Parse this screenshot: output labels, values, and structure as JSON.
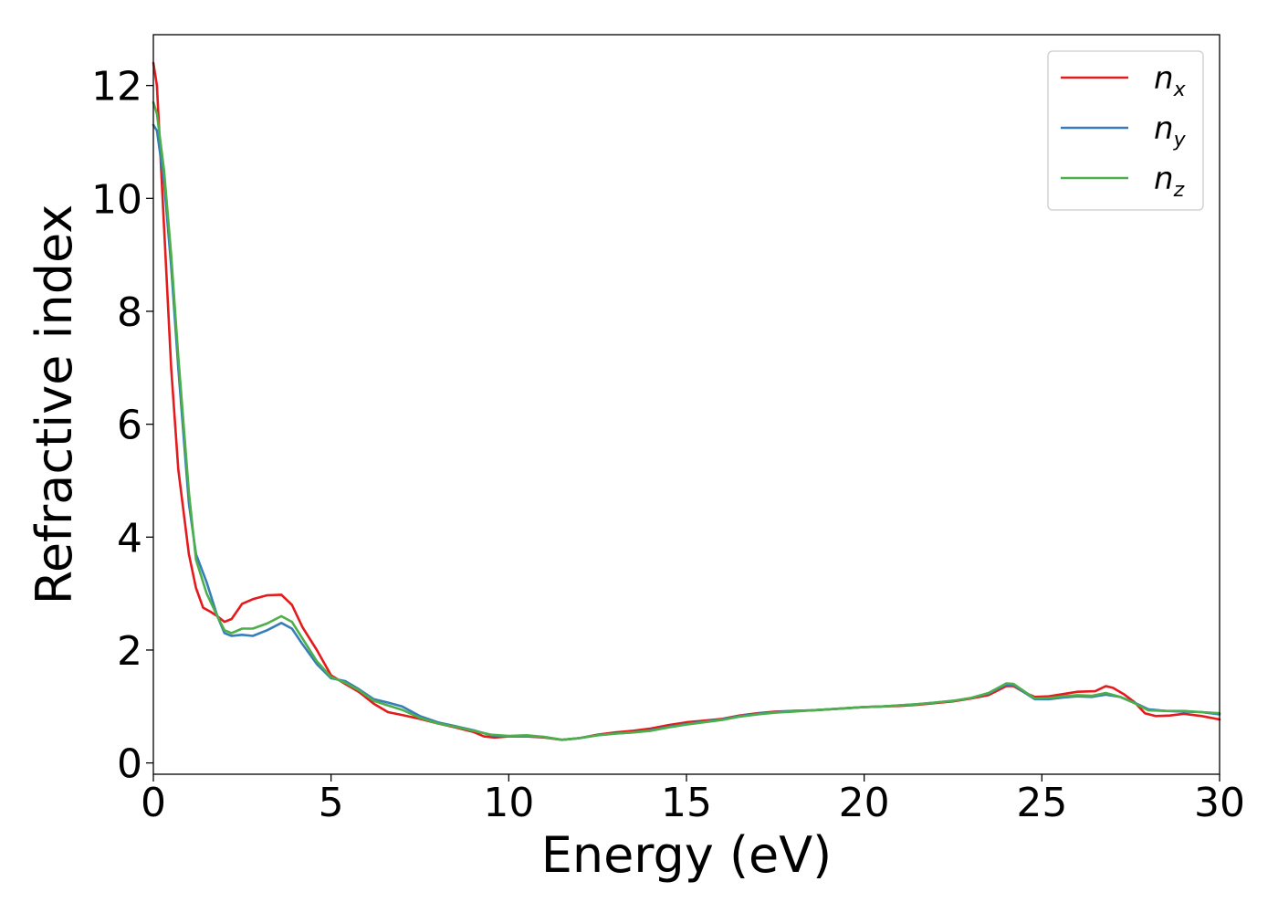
{
  "chart_data": {
    "type": "line",
    "title": "",
    "xlabel": "Energy (eV)",
    "ylabel": "Refractive index",
    "xlim": [
      0,
      30
    ],
    "ylim": [
      -0.2,
      12.9
    ],
    "xticks": [
      0,
      5,
      10,
      15,
      20,
      25,
      30
    ],
    "xtick_labels": [
      "0",
      "5",
      "10",
      "15",
      "20",
      "25",
      "30"
    ],
    "yticks": [
      0,
      2,
      4,
      6,
      8,
      10,
      12
    ],
    "ytick_labels": [
      "0",
      "2",
      "4",
      "6",
      "8",
      "10",
      "12"
    ],
    "grid": false,
    "legend_position": "top-right",
    "series": [
      {
        "name": "n_x",
        "label_main": "n",
        "label_sub": "x",
        "color": "#e41a1c",
        "points": [
          [
            0,
            12.4
          ],
          [
            0.1,
            12.0
          ],
          [
            0.3,
            9.5
          ],
          [
            0.5,
            7.0
          ],
          [
            0.7,
            5.2
          ],
          [
            1.0,
            3.7
          ],
          [
            1.2,
            3.1
          ],
          [
            1.4,
            2.75
          ],
          [
            1.6,
            2.68
          ],
          [
            1.8,
            2.6
          ],
          [
            2.0,
            2.5
          ],
          [
            2.2,
            2.55
          ],
          [
            2.5,
            2.82
          ],
          [
            2.8,
            2.9
          ],
          [
            3.2,
            2.97
          ],
          [
            3.6,
            2.98
          ],
          [
            3.9,
            2.8
          ],
          [
            4.2,
            2.4
          ],
          [
            4.6,
            2.0
          ],
          [
            5.0,
            1.55
          ],
          [
            5.4,
            1.4
          ],
          [
            5.8,
            1.25
          ],
          [
            6.2,
            1.05
          ],
          [
            6.6,
            0.9
          ],
          [
            7.0,
            0.85
          ],
          [
            7.5,
            0.78
          ],
          [
            8.0,
            0.7
          ],
          [
            8.5,
            0.63
          ],
          [
            9.0,
            0.55
          ],
          [
            9.3,
            0.47
          ],
          [
            9.6,
            0.45
          ],
          [
            10.0,
            0.47
          ],
          [
            10.5,
            0.47
          ],
          [
            11.0,
            0.45
          ],
          [
            11.5,
            0.41
          ],
          [
            12.0,
            0.44
          ],
          [
            12.5,
            0.5
          ],
          [
            13.0,
            0.54
          ],
          [
            13.5,
            0.57
          ],
          [
            14.0,
            0.61
          ],
          [
            14.5,
            0.67
          ],
          [
            15.0,
            0.72
          ],
          [
            15.5,
            0.75
          ],
          [
            16.0,
            0.78
          ],
          [
            16.5,
            0.84
          ],
          [
            17.0,
            0.88
          ],
          [
            17.5,
            0.91
          ],
          [
            18.0,
            0.92
          ],
          [
            18.5,
            0.93
          ],
          [
            19.0,
            0.95
          ],
          [
            19.5,
            0.97
          ],
          [
            20.0,
            0.99
          ],
          [
            20.5,
            1.0
          ],
          [
            21.0,
            1.01
          ],
          [
            21.5,
            1.03
          ],
          [
            22.0,
            1.06
          ],
          [
            22.5,
            1.09
          ],
          [
            23.0,
            1.14
          ],
          [
            23.5,
            1.2
          ],
          [
            24.0,
            1.36
          ],
          [
            24.2,
            1.36
          ],
          [
            24.5,
            1.25
          ],
          [
            24.8,
            1.17
          ],
          [
            25.2,
            1.18
          ],
          [
            25.6,
            1.22
          ],
          [
            26.0,
            1.26
          ],
          [
            26.5,
            1.27
          ],
          [
            26.8,
            1.36
          ],
          [
            27.0,
            1.33
          ],
          [
            27.3,
            1.22
          ],
          [
            27.6,
            1.08
          ],
          [
            27.9,
            0.88
          ],
          [
            28.2,
            0.83
          ],
          [
            28.6,
            0.84
          ],
          [
            29.0,
            0.87
          ],
          [
            29.5,
            0.83
          ],
          [
            30.0,
            0.77
          ]
        ]
      },
      {
        "name": "n_y",
        "label_main": "n",
        "label_sub": "y",
        "color": "#377eb8",
        "points": [
          [
            0,
            11.3
          ],
          [
            0.1,
            11.2
          ],
          [
            0.3,
            10.3
          ],
          [
            0.5,
            8.8
          ],
          [
            0.7,
            7.0
          ],
          [
            1.0,
            4.6
          ],
          [
            1.2,
            3.7
          ],
          [
            1.5,
            3.2
          ],
          [
            1.8,
            2.6
          ],
          [
            2.0,
            2.3
          ],
          [
            2.2,
            2.25
          ],
          [
            2.5,
            2.27
          ],
          [
            2.8,
            2.25
          ],
          [
            3.2,
            2.35
          ],
          [
            3.6,
            2.48
          ],
          [
            3.9,
            2.38
          ],
          [
            4.2,
            2.1
          ],
          [
            4.6,
            1.75
          ],
          [
            5.0,
            1.5
          ],
          [
            5.4,
            1.45
          ],
          [
            5.8,
            1.3
          ],
          [
            6.2,
            1.13
          ],
          [
            6.6,
            1.07
          ],
          [
            7.0,
            1.0
          ],
          [
            7.5,
            0.83
          ],
          [
            8.0,
            0.72
          ],
          [
            8.5,
            0.65
          ],
          [
            9.0,
            0.58
          ],
          [
            9.5,
            0.49
          ],
          [
            10.0,
            0.47
          ],
          [
            10.5,
            0.47
          ],
          [
            11.0,
            0.46
          ],
          [
            11.5,
            0.41
          ],
          [
            12.0,
            0.44
          ],
          [
            12.5,
            0.49
          ],
          [
            13.0,
            0.52
          ],
          [
            13.5,
            0.54
          ],
          [
            14.0,
            0.58
          ],
          [
            14.5,
            0.64
          ],
          [
            15.0,
            0.69
          ],
          [
            15.5,
            0.73
          ],
          [
            16.0,
            0.77
          ],
          [
            16.5,
            0.83
          ],
          [
            17.0,
            0.87
          ],
          [
            17.5,
            0.9
          ],
          [
            18.0,
            0.92
          ],
          [
            18.5,
            0.93
          ],
          [
            19.0,
            0.95
          ],
          [
            19.5,
            0.97
          ],
          [
            20.0,
            0.99
          ],
          [
            20.5,
            1.0
          ],
          [
            21.0,
            1.02
          ],
          [
            21.5,
            1.04
          ],
          [
            22.0,
            1.07
          ],
          [
            22.5,
            1.1
          ],
          [
            23.0,
            1.15
          ],
          [
            23.5,
            1.23
          ],
          [
            24.0,
            1.39
          ],
          [
            24.2,
            1.38
          ],
          [
            24.5,
            1.25
          ],
          [
            24.8,
            1.13
          ],
          [
            25.2,
            1.13
          ],
          [
            25.6,
            1.16
          ],
          [
            26.0,
            1.18
          ],
          [
            26.4,
            1.17
          ],
          [
            26.8,
            1.21
          ],
          [
            27.2,
            1.17
          ],
          [
            27.6,
            1.07
          ],
          [
            28.0,
            0.95
          ],
          [
            28.5,
            0.92
          ],
          [
            29.0,
            0.91
          ],
          [
            29.5,
            0.9
          ],
          [
            30.0,
            0.86
          ]
        ]
      },
      {
        "name": "n_z",
        "label_main": "n",
        "label_sub": "z",
        "color": "#4daf4a",
        "points": [
          [
            0,
            11.7
          ],
          [
            0.1,
            11.5
          ],
          [
            0.3,
            10.5
          ],
          [
            0.5,
            9.0
          ],
          [
            0.7,
            7.2
          ],
          [
            1.0,
            4.8
          ],
          [
            1.2,
            3.6
          ],
          [
            1.5,
            3.0
          ],
          [
            1.8,
            2.6
          ],
          [
            2.0,
            2.35
          ],
          [
            2.2,
            2.3
          ],
          [
            2.5,
            2.38
          ],
          [
            2.8,
            2.38
          ],
          [
            3.2,
            2.47
          ],
          [
            3.6,
            2.6
          ],
          [
            3.9,
            2.5
          ],
          [
            4.2,
            2.2
          ],
          [
            4.6,
            1.8
          ],
          [
            5.0,
            1.52
          ],
          [
            5.4,
            1.42
          ],
          [
            5.8,
            1.28
          ],
          [
            6.2,
            1.1
          ],
          [
            6.6,
            1.02
          ],
          [
            7.0,
            0.94
          ],
          [
            7.5,
            0.8
          ],
          [
            8.0,
            0.7
          ],
          [
            8.5,
            0.64
          ],
          [
            9.0,
            0.57
          ],
          [
            9.5,
            0.5
          ],
          [
            10.0,
            0.48
          ],
          [
            10.5,
            0.49
          ],
          [
            11.0,
            0.46
          ],
          [
            11.5,
            0.41
          ],
          [
            12.0,
            0.44
          ],
          [
            12.5,
            0.49
          ],
          [
            13.0,
            0.52
          ],
          [
            13.5,
            0.54
          ],
          [
            14.0,
            0.57
          ],
          [
            14.5,
            0.63
          ],
          [
            15.0,
            0.68
          ],
          [
            15.5,
            0.72
          ],
          [
            16.0,
            0.76
          ],
          [
            16.5,
            0.82
          ],
          [
            17.0,
            0.86
          ],
          [
            17.5,
            0.89
          ],
          [
            18.0,
            0.91
          ],
          [
            18.5,
            0.93
          ],
          [
            19.0,
            0.95
          ],
          [
            19.5,
            0.97
          ],
          [
            20.0,
            0.99
          ],
          [
            20.5,
            1.0
          ],
          [
            21.0,
            1.02
          ],
          [
            21.5,
            1.04
          ],
          [
            22.0,
            1.07
          ],
          [
            22.5,
            1.1
          ],
          [
            23.0,
            1.15
          ],
          [
            23.5,
            1.24
          ],
          [
            24.0,
            1.41
          ],
          [
            24.2,
            1.4
          ],
          [
            24.5,
            1.27
          ],
          [
            24.8,
            1.14
          ],
          [
            25.2,
            1.15
          ],
          [
            25.6,
            1.18
          ],
          [
            26.0,
            1.2
          ],
          [
            26.4,
            1.19
          ],
          [
            26.8,
            1.24
          ],
          [
            27.2,
            1.17
          ],
          [
            27.6,
            1.06
          ],
          [
            28.0,
            0.93
          ],
          [
            28.5,
            0.92
          ],
          [
            29.0,
            0.92
          ],
          [
            29.5,
            0.9
          ],
          [
            30.0,
            0.88
          ]
        ]
      }
    ]
  }
}
